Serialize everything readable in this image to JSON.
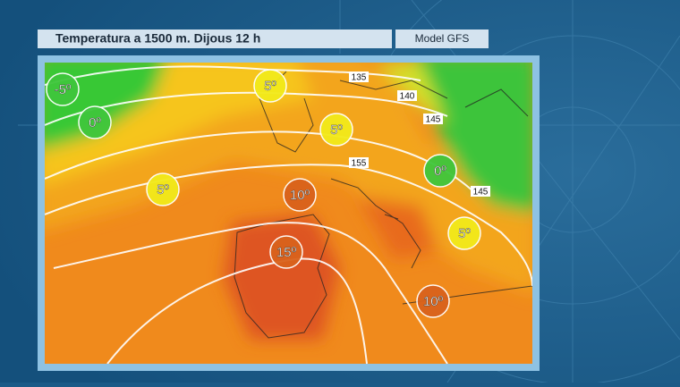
{
  "header": {
    "title": "Temperatura a 1500 m.  Dijous 12 h",
    "model": "Model GFS"
  },
  "map": {
    "temperature_labels": [
      "-5º",
      "0º",
      "5º",
      "5º",
      "5º",
      "10º",
      "0º",
      "15º",
      "5º",
      "10º"
    ],
    "isoline_labels": [
      "135",
      "140",
      "145",
      "155",
      "145"
    ]
  }
}
